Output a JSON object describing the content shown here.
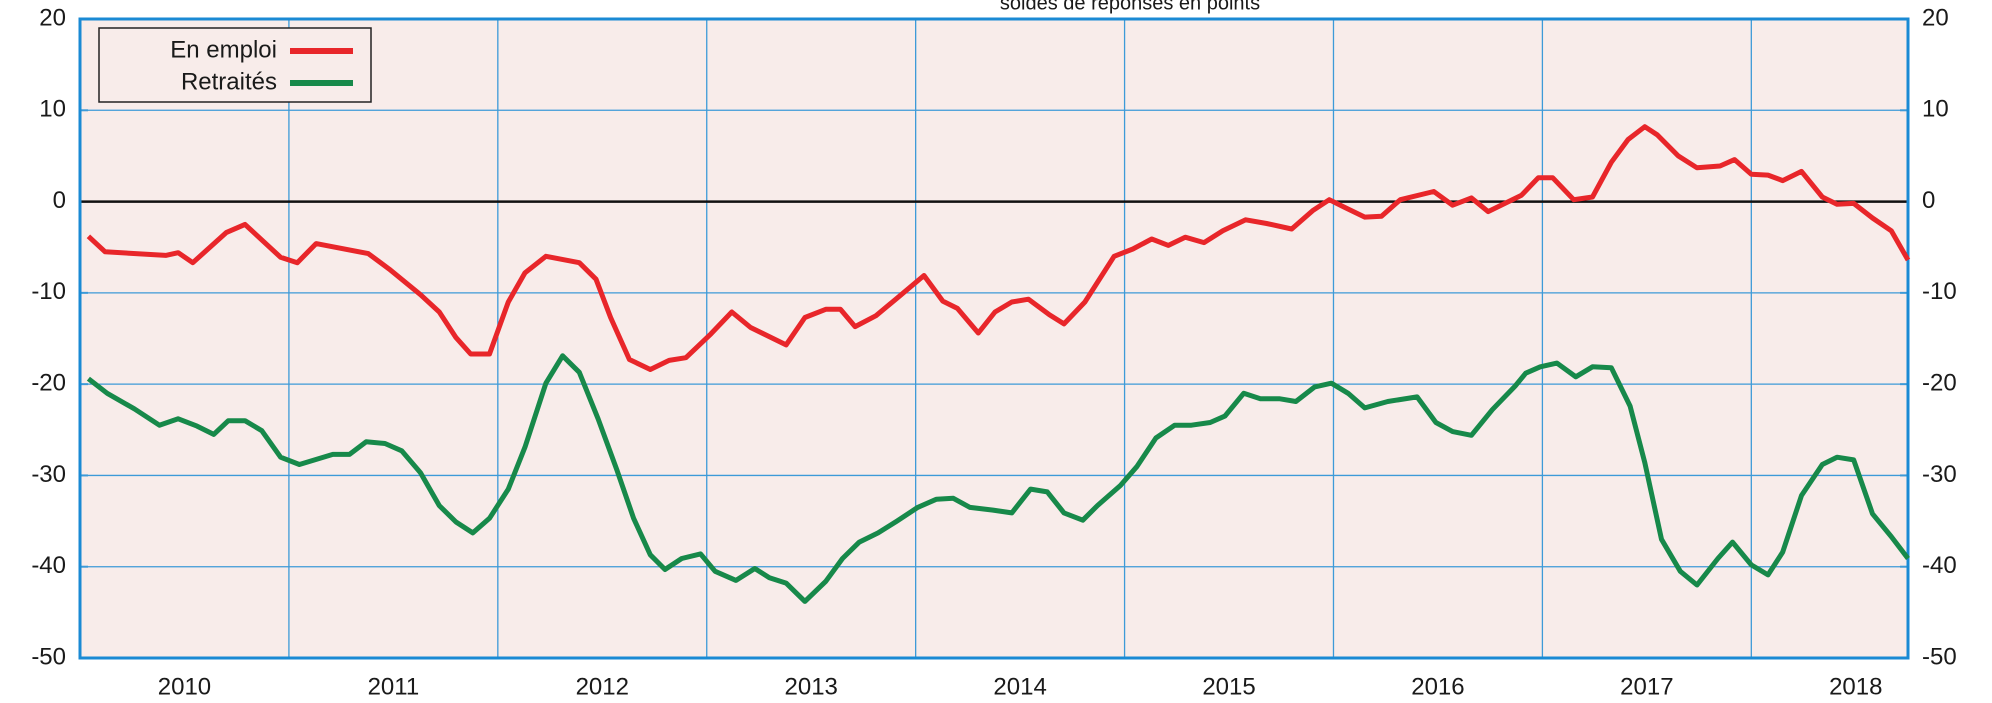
{
  "chart_data": {
    "type": "line",
    "subtitle": "soldes de réponses en points",
    "xlim": [
      2010,
      2018.75
    ],
    "xticks": [
      {
        "value": 2010.5,
        "label": "2010"
      },
      {
        "value": 2011.5,
        "label": "2011"
      },
      {
        "value": 2012.5,
        "label": "2012"
      },
      {
        "value": 2013.5,
        "label": "2013"
      },
      {
        "value": 2014.5,
        "label": "2014"
      },
      {
        "value": 2015.5,
        "label": "2015"
      },
      {
        "value": 2016.5,
        "label": "2016"
      },
      {
        "value": 2017.5,
        "label": "2017"
      },
      {
        "value": 2018.5,
        "label": "2018"
      }
    ],
    "ylim": [
      -50,
      20
    ],
    "yticks": [
      -50,
      -40,
      -30,
      -20,
      -10,
      0,
      10,
      20
    ],
    "y2lim": [
      -50,
      20
    ],
    "y2ticks": [
      -50,
      -40,
      -30,
      -20,
      -10,
      0,
      10,
      20
    ],
    "grid": true,
    "legend": "upper left",
    "series": [
      {
        "name": "En emploi",
        "color": "#e8262a",
        "x": [
          2010.04,
          2010.12,
          2010.41,
          2010.47,
          2010.54,
          2010.7,
          2010.79,
          2010.96,
          2011.04,
          2011.13,
          2011.38,
          2011.48,
          2011.63,
          2011.72,
          2011.8,
          2011.87,
          2011.96,
          2012.05,
          2012.13,
          2012.23,
          2012.39,
          2012.47,
          2012.54,
          2012.63,
          2012.73,
          2012.82,
          2012.9,
          2013.02,
          2013.12,
          2013.21,
          2013.38,
          2013.47,
          2013.57,
          2013.64,
          2013.71,
          2013.81,
          2013.91,
          2014.04,
          2014.13,
          2014.2,
          2014.3,
          2014.38,
          2014.46,
          2014.54,
          2014.64,
          2014.71,
          2014.81,
          2014.95,
          2015.04,
          2015.13,
          2015.21,
          2015.29,
          2015.38,
          2015.47,
          2015.58,
          2015.68,
          2015.8,
          2015.9,
          2015.98,
          2016.05,
          2016.15,
          2016.23,
          2016.32,
          2016.48,
          2016.57,
          2016.66,
          2016.74,
          2016.9,
          2016.98,
          2017.05,
          2017.15,
          2017.24,
          2017.33,
          2017.41,
          2017.49,
          2017.55,
          2017.65,
          2017.74,
          2017.85,
          2017.92,
          2018.0,
          2018.08,
          2018.15,
          2018.24,
          2018.34,
          2018.41,
          2018.49,
          2018.58,
          2018.67,
          2018.75
        ],
        "values": [
          -3.8,
          -5.5,
          -5.9,
          -5.6,
          -6.7,
          -3.4,
          -2.5,
          -6.1,
          -6.7,
          -4.6,
          -5.7,
          -7.4,
          -10.2,
          -12.1,
          -14.9,
          -16.7,
          -16.7,
          -11,
          -7.8,
          -6,
          -6.7,
          -8.5,
          -12.7,
          -17.3,
          -18.4,
          -17.4,
          -17.1,
          -14.5,
          -12.1,
          -13.8,
          -15.7,
          -12.7,
          -11.8,
          -11.8,
          -13.7,
          -12.5,
          -10.6,
          -8.1,
          -10.9,
          -11.7,
          -14.4,
          -12.1,
          -11,
          -10.7,
          -12.4,
          -13.4,
          -11,
          -6,
          -5.2,
          -4.1,
          -4.8,
          -3.9,
          -4.5,
          -3.2,
          -2,
          -2.4,
          -3,
          -1,
          0.2,
          -0.6,
          -1.7,
          -1.6,
          0.2,
          1.1,
          -0.4,
          0.4,
          -1.1,
          0.7,
          2.6,
          2.6,
          0.2,
          0.5,
          4.3,
          6.8,
          8.2,
          7.3,
          5,
          3.7,
          3.9,
          4.6,
          3,
          2.9,
          2.3,
          3.3,
          0.5,
          -0.3,
          -0.2,
          -1.8,
          -3.2,
          -6.4
        ]
      },
      {
        "name": "Retraités",
        "color": "#17894a",
        "x": [
          2010.04,
          2010.13,
          2010.26,
          2010.38,
          2010.47,
          2010.56,
          2010.64,
          2010.71,
          2010.79,
          2010.87,
          2010.96,
          2011.05,
          2011.21,
          2011.29,
          2011.37,
          2011.46,
          2011.54,
          2011.63,
          2011.72,
          2011.8,
          2011.88,
          2011.96,
          2012.05,
          2012.13,
          2012.23,
          2012.31,
          2012.39,
          2012.48,
          2012.57,
          2012.65,
          2012.73,
          2012.8,
          2012.88,
          2012.97,
          2013.04,
          2013.14,
          2013.23,
          2013.3,
          2013.38,
          2013.47,
          2013.57,
          2013.65,
          2013.73,
          2013.82,
          2013.91,
          2014.01,
          2014.1,
          2014.18,
          2014.26,
          2014.37,
          2014.46,
          2014.55,
          2014.63,
          2014.71,
          2014.8,
          2014.87,
          2014.98,
          2015.06,
          2015.15,
          2015.24,
          2015.32,
          2015.41,
          2015.48,
          2015.57,
          2015.65,
          2015.74,
          2015.82,
          2015.91,
          2015.99,
          2016.07,
          2016.15,
          2016.26,
          2016.4,
          2016.49,
          2016.57,
          2016.66,
          2016.76,
          2016.87,
          2016.92,
          2016.99,
          2017.07,
          2017.16,
          2017.24,
          2017.33,
          2017.42,
          2017.49,
          2017.57,
          2017.66,
          2017.74,
          2017.84,
          2017.91,
          2018.0,
          2018.08,
          2018.15,
          2018.24,
          2018.34,
          2018.41,
          2018.49,
          2018.58,
          2018.67,
          2018.75
        ],
        "values": [
          -19.4,
          -21,
          -22.7,
          -24.5,
          -23.8,
          -24.6,
          -25.5,
          -24,
          -24,
          -25.1,
          -28,
          -28.8,
          -27.7,
          -27.7,
          -26.3,
          -26.5,
          -27.3,
          -29.7,
          -33.3,
          -35.1,
          -36.3,
          -34.7,
          -31.5,
          -26.9,
          -19.9,
          -16.9,
          -18.7,
          -23.8,
          -29.4,
          -34.7,
          -38.7,
          -40.3,
          -39.1,
          -38.6,
          -40.5,
          -41.5,
          -40.2,
          -41.2,
          -41.8,
          -43.8,
          -41.6,
          -39.1,
          -37.3,
          -36.3,
          -35,
          -33.5,
          -32.6,
          -32.5,
          -33.5,
          -33.8,
          -34.1,
          -31.5,
          -31.8,
          -34.1,
          -34.9,
          -33.3,
          -31.1,
          -29,
          -25.9,
          -24.5,
          -24.5,
          -24.2,
          -23.5,
          -21,
          -21.6,
          -21.6,
          -21.9,
          -20.3,
          -19.9,
          -21,
          -22.6,
          -21.9,
          -21.4,
          -24.2,
          -25.2,
          -25.6,
          -22.8,
          -20.2,
          -18.8,
          -18.1,
          -17.7,
          -19.2,
          -18.1,
          -18.2,
          -22.4,
          -28.6,
          -37,
          -40.5,
          -42,
          -39.1,
          -37.3,
          -39.8,
          -40.9,
          -38.4,
          -32.2,
          -28.8,
          -28,
          -28.3,
          -34.2,
          -36.7,
          -39.1
        ]
      }
    ]
  }
}
